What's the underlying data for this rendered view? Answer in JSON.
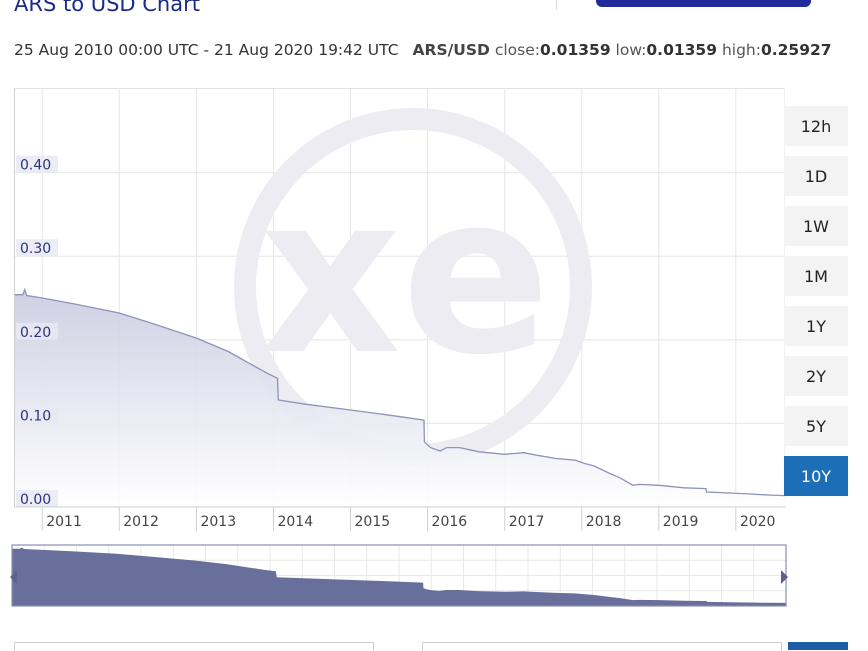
{
  "header": {
    "title": "ARS to USD Chart",
    "range": "25 Aug 2010 00:00 UTC - 21 Aug 2020 19:42 UTC",
    "pair": "ARS/USD",
    "close_label": "close:",
    "close_value": "0.01359",
    "low_label": "low:",
    "low_value": "0.01359",
    "high_label": "high:",
    "high_value": "0.25927"
  },
  "range_buttons": [
    {
      "label": "12h"
    },
    {
      "label": "1D"
    },
    {
      "label": "1W"
    },
    {
      "label": "1M"
    },
    {
      "label": "1Y"
    },
    {
      "label": "2Y"
    },
    {
      "label": "5Y"
    },
    {
      "label": "10Y",
      "active": true
    }
  ],
  "colors": {
    "title": "#1a2b88",
    "line": "#8e93b8",
    "area_top": "#c9cbe0",
    "area_bottom": "#ffffff",
    "navigator_fill": "#676f9a",
    "active_button": "#1c6fb7",
    "watermark": "#ececf2"
  },
  "watermark": "xe",
  "chart_data": {
    "type": "area",
    "title": "ARS to USD Chart",
    "xlabel": "",
    "ylabel": "",
    "x_tick_labels": [
      "2011",
      "2012",
      "2013",
      "2014",
      "2015",
      "2016",
      "2017",
      "2018",
      "2019",
      "2020"
    ],
    "y_tick_labels": [
      "0.00",
      "0.10",
      "0.20",
      "0.30",
      "0.40"
    ],
    "xlim": [
      "2010-08-25",
      "2020-08-21"
    ],
    "ylim": [
      0,
      0.5
    ],
    "grid": true,
    "series": [
      {
        "points": [
          [
            "2010-08-25",
            0.254
          ],
          [
            "2010-10-01",
            0.254
          ],
          [
            "2010-10-10",
            0.26
          ],
          [
            "2010-10-20",
            0.253
          ],
          [
            "2011-01-01",
            0.25
          ],
          [
            "2011-06-01",
            0.243
          ],
          [
            "2012-01-01",
            0.232
          ],
          [
            "2012-06-01",
            0.22
          ],
          [
            "2013-01-01",
            0.202
          ],
          [
            "2013-06-01",
            0.186
          ],
          [
            "2013-12-01",
            0.16
          ],
          [
            "2014-01-20",
            0.154
          ],
          [
            "2014-01-24",
            0.128
          ],
          [
            "2014-06-01",
            0.123
          ],
          [
            "2015-01-01",
            0.116
          ],
          [
            "2015-06-01",
            0.111
          ],
          [
            "2015-12-15",
            0.104
          ],
          [
            "2015-12-17",
            0.078
          ],
          [
            "2016-01-15",
            0.071
          ],
          [
            "2016-03-01",
            0.067
          ],
          [
            "2016-04-01",
            0.071
          ],
          [
            "2016-06-01",
            0.071
          ],
          [
            "2016-09-01",
            0.066
          ],
          [
            "2017-01-01",
            0.063
          ],
          [
            "2017-04-01",
            0.065
          ],
          [
            "2017-06-01",
            0.062
          ],
          [
            "2017-09-01",
            0.058
          ],
          [
            "2017-12-01",
            0.056
          ],
          [
            "2018-01-15",
            0.052
          ],
          [
            "2018-03-01",
            0.049
          ],
          [
            "2018-05-15",
            0.04
          ],
          [
            "2018-06-30",
            0.035
          ],
          [
            "2018-08-31",
            0.026
          ],
          [
            "2018-10-01",
            0.027
          ],
          [
            "2019-01-01",
            0.026
          ],
          [
            "2019-05-01",
            0.023
          ],
          [
            "2019-08-12",
            0.022
          ],
          [
            "2019-08-15",
            0.018
          ],
          [
            "2019-12-01",
            0.0167
          ],
          [
            "2020-03-01",
            0.0157
          ],
          [
            "2020-06-01",
            0.0143
          ],
          [
            "2020-08-21",
            0.01359
          ]
        ]
      }
    ]
  }
}
